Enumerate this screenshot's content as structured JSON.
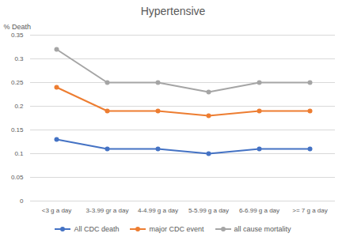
{
  "chart_data": {
    "type": "line",
    "title": "Hypertensive",
    "y_label": "% Death",
    "categories": [
      "<3 g a day",
      "3-3.99 gr a day",
      "4-4.99 g a day",
      "5-5.99 g a day",
      "6-6.99 g a day",
      ">= 7 g a day"
    ],
    "series": [
      {
        "name": "All CDC death",
        "color": "#4472c4",
        "values": [
          0.13,
          0.11,
          0.11,
          0.1,
          0.11,
          0.11
        ]
      },
      {
        "name": "major CDC event",
        "color": "#ed7d31",
        "values": [
          0.24,
          0.19,
          0.19,
          0.18,
          0.19,
          0.19
        ]
      },
      {
        "name": "all cause mortality",
        "color": "#a5a5a5",
        "values": [
          0.32,
          0.25,
          0.25,
          0.23,
          0.25,
          0.25
        ]
      }
    ],
    "ylim": [
      0,
      0.35
    ],
    "yticks": [
      0,
      0.05,
      0.1,
      0.15,
      0.2,
      0.25,
      0.3,
      0.35
    ],
    "grid": true,
    "legend": "bottom",
    "marker": "circle"
  }
}
